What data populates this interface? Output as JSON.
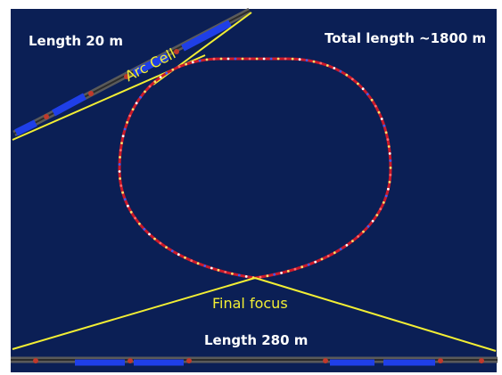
{
  "labels": {
    "length_arc": "Length 20 m",
    "total_length": "Total length ~1800 m",
    "arc_cell": "Arc Cell",
    "final_focus": "Final focus",
    "length_ff": "Length 280 m"
  },
  "colors": {
    "background": "#0b1f55",
    "ring": "#cc1a2a",
    "highlight_line": "#f2ee34",
    "magnet_blue": "#1f3fe8",
    "beamline_grey": "#6a6a6a",
    "text": "#ffffff"
  }
}
